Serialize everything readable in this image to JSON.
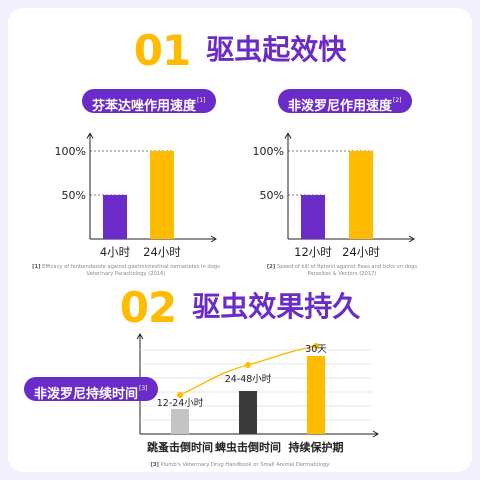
{
  "section1": {
    "number": "01",
    "title": "驱虫起效快"
  },
  "section2": {
    "number": "02",
    "title": "驱虫效果持久"
  },
  "chart_data": [
    {
      "type": "bar",
      "pill": "芬苯达唑作用速度",
      "pill_ref": "[1]",
      "categories": [
        "4小时",
        "24小时"
      ],
      "values": [
        50,
        100
      ],
      "ytick_labels": [
        "50%",
        "100%"
      ],
      "ylim": [
        0,
        120
      ],
      "colors": [
        "#6a2bc8",
        "#ffbb00"
      ],
      "reference_num": "[1]",
      "reference": [
        "Efficacy of fenbendazole against gastrointestinal nematodes in dogs",
        "Veterinary Parasitology (2016)"
      ]
    },
    {
      "type": "bar",
      "pill": "非泼罗尼作用速度",
      "pill_ref": "[2]",
      "categories": [
        "12小时",
        "24小时"
      ],
      "values": [
        50,
        100
      ],
      "ytick_labels": [
        "50%",
        "100%"
      ],
      "ylim": [
        0,
        120
      ],
      "colors": [
        "#6a2bc8",
        "#ffbb00"
      ],
      "reference_num": "[2]",
      "reference": [
        "Speed of kill of fipronil against fleas and ticks on dogs",
        "Parasites & Vectors (2017)"
      ]
    },
    {
      "type": "bar",
      "pill": "非泼罗尼持续时间",
      "pill_ref": "[3]",
      "categories": [
        "跳蚤击倒时间",
        "蜱虫击倒时间",
        "持续保护期"
      ],
      "value_labels": [
        "12-24小时",
        "24-48小时",
        "30天"
      ],
      "levels": [
        0.25,
        0.43,
        0.78
      ],
      "colors": [
        "#c4c4c4",
        "#3a3a3a",
        "#ffbb00"
      ],
      "trend_color": "#ffbb00",
      "reference_num": "[3]",
      "reference": [
        "Plumb's Veterinary Drug Handbook or Small Animal Dermatology"
      ]
    }
  ]
}
